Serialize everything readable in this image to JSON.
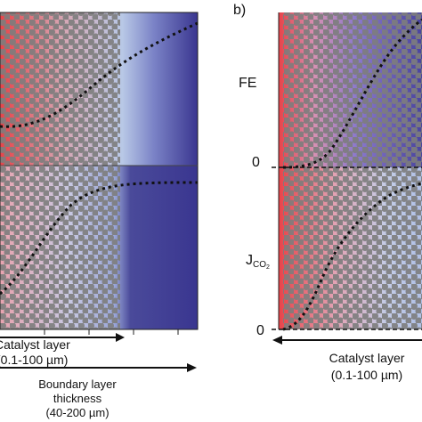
{
  "colors": {
    "red": "#e8444a",
    "light_blue": "#b8c8e6",
    "dark_blue": "#3a3690",
    "particle": "#7d7d7d",
    "dotted_curve": "#111111"
  },
  "panel_a": {
    "catalyst_layer_label": "Catalyst layer",
    "catalyst_layer_range": "(0.1-100 µm)",
    "boundary_layer_label_1": "Boundary layer",
    "boundary_layer_label_2": "thickness",
    "boundary_layer_range": "(40-200 µm)"
  },
  "panel_b": {
    "panel_label": "b)",
    "fe_label": "FE",
    "fe_zero": "0",
    "j_label": "J",
    "j_subscript": "CO",
    "j_sub_sub": "2",
    "j_zero": "0",
    "catalyst_layer_label": "Catalyst layer",
    "catalyst_layer_range": "(0.1-100 µm)"
  }
}
